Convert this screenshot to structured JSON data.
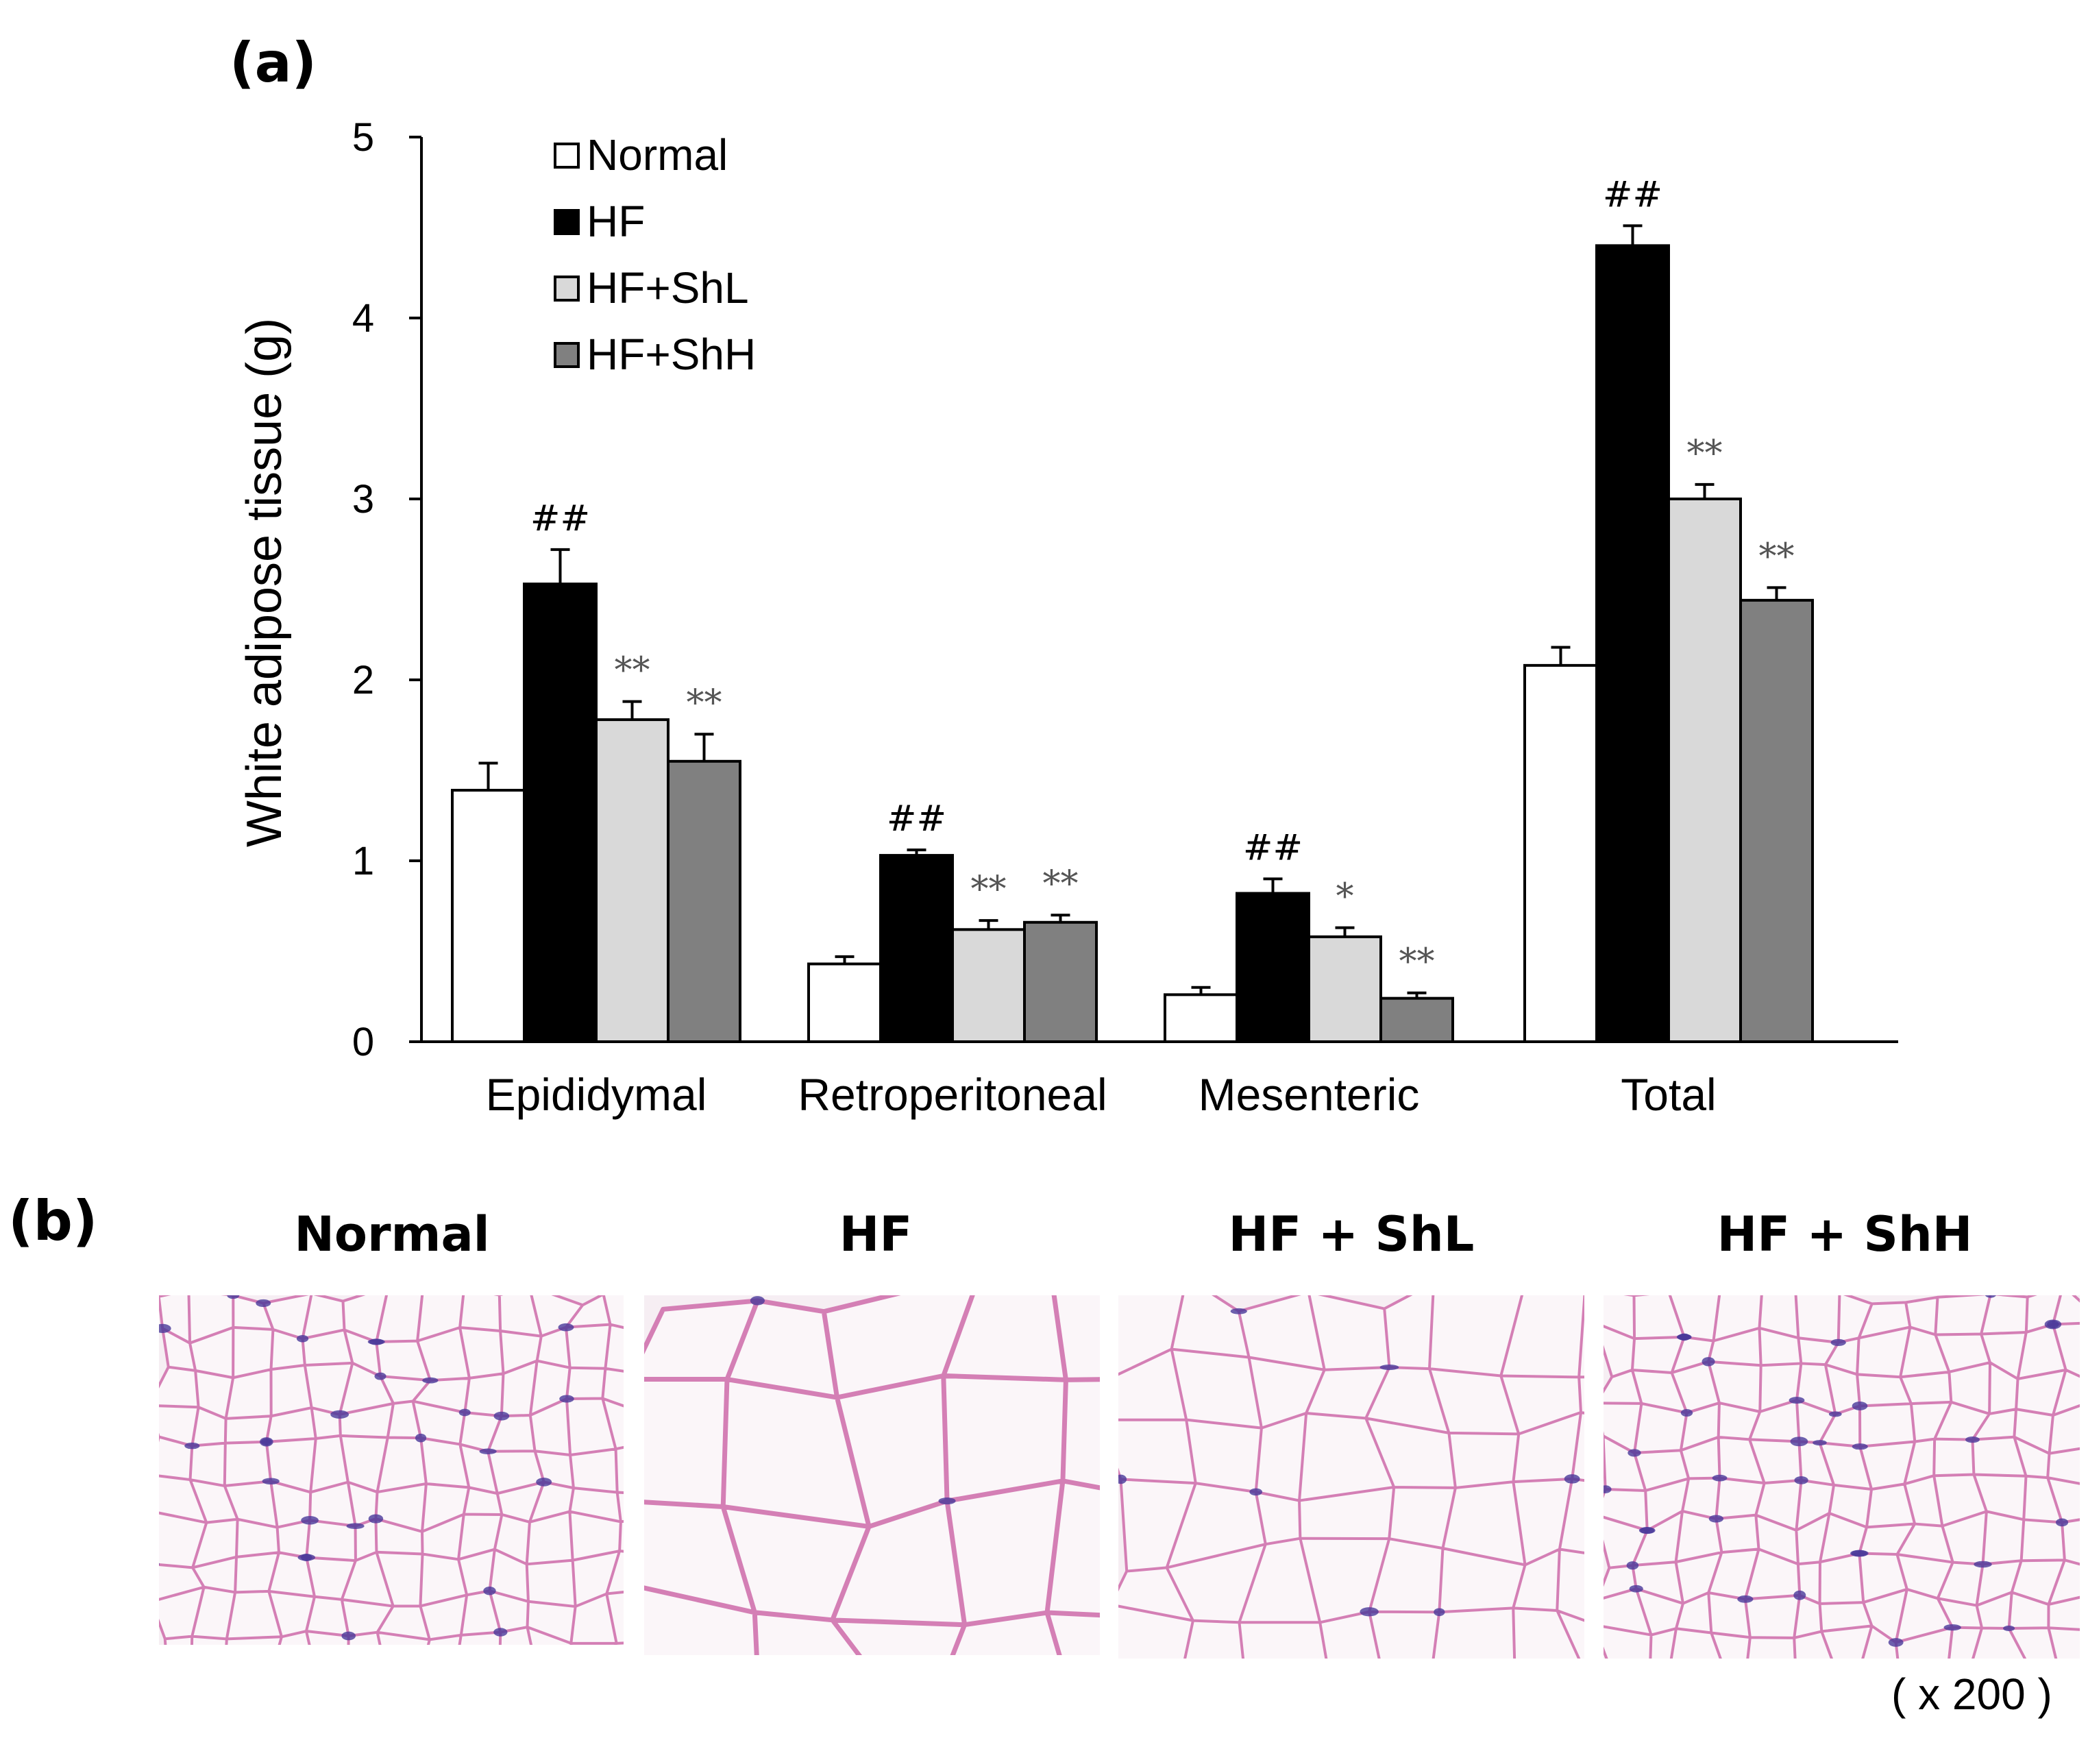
{
  "panel_a_label": "(a)",
  "panel_b_label": "(b)",
  "chart_data": {
    "type": "bar",
    "ylabel": "White adipose tissue (g)",
    "xlabel": "",
    "ylim": [
      0,
      5
    ],
    "yticks": [
      "0",
      "1",
      "2",
      "3",
      "4",
      "5"
    ],
    "grid": false,
    "legend_position": "top-left",
    "categories": [
      "Epididymal",
      "Retroperitoneal",
      "Mesenteric",
      "Total"
    ],
    "series": [
      {
        "name": "Normal",
        "color": "#ffffff",
        "values": [
          1.39,
          0.43,
          0.26,
          2.08
        ],
        "errors": [
          0.15,
          0.04,
          0.04,
          0.1
        ],
        "annotations": [
          "",
          "",
          "",
          ""
        ]
      },
      {
        "name": "HF",
        "color": "#000000",
        "values": [
          2.53,
          1.03,
          0.82,
          4.4
        ],
        "errors": [
          0.19,
          0.03,
          0.08,
          0.11
        ],
        "annotations": [
          "##",
          "##",
          "##",
          "##"
        ]
      },
      {
        "name": "HF+ShL",
        "color": "#d9d9d9",
        "values": [
          1.78,
          0.62,
          0.58,
          3.0
        ],
        "errors": [
          0.1,
          0.05,
          0.05,
          0.08
        ],
        "annotations": [
          "**",
          "**",
          "*",
          "**"
        ]
      },
      {
        "name": "HF+ShH",
        "color": "#808080",
        "values": [
          1.55,
          0.66,
          0.24,
          2.44
        ],
        "errors": [
          0.15,
          0.04,
          0.03,
          0.07
        ],
        "annotations": [
          "**",
          "**",
          "**",
          "**"
        ]
      }
    ]
  },
  "histology": {
    "panels": [
      {
        "title": "Normal",
        "cell_density": "small"
      },
      {
        "title": "HF",
        "cell_density": "large"
      },
      {
        "title": "HF + ShL",
        "cell_density": "medium"
      },
      {
        "title": "HF + ShH",
        "cell_density": "small"
      }
    ],
    "magnification": "( x 200 )",
    "stain_colors": {
      "membrane": "#d47fb5",
      "nuclei": "#4a3a9a",
      "background": "#f6eef3"
    }
  }
}
